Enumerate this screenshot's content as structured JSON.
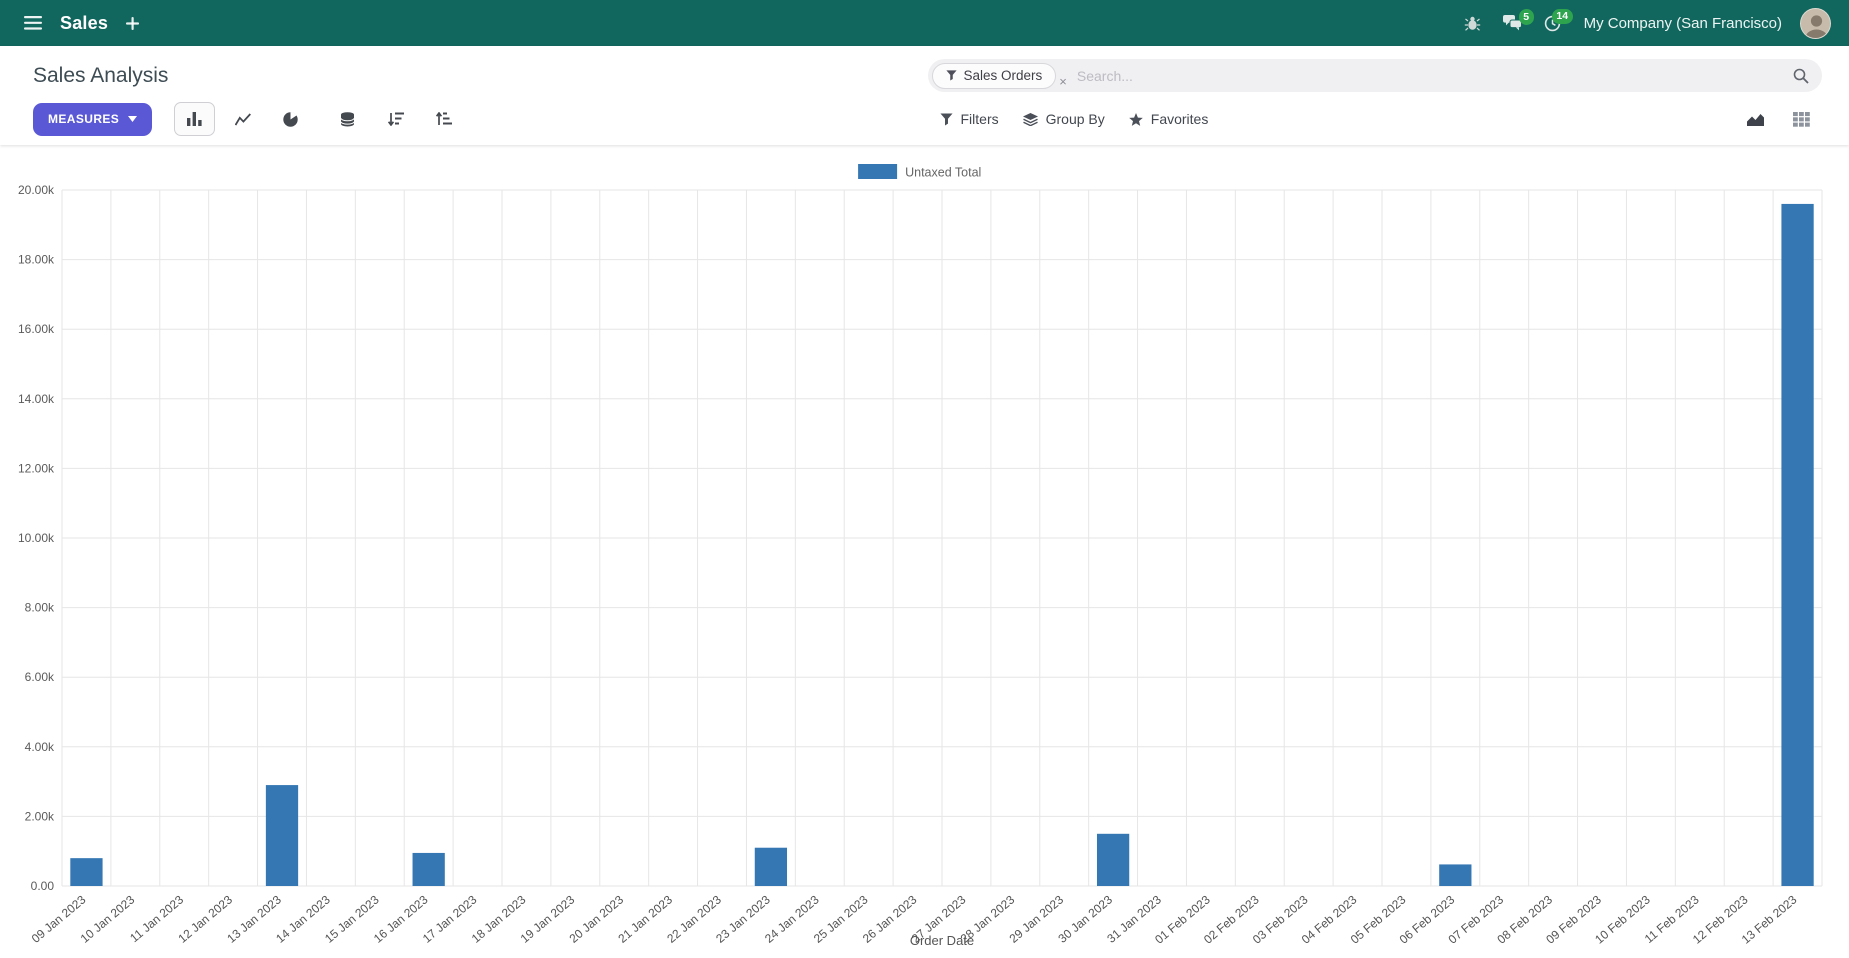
{
  "colors": {
    "nav_bg": "#11675e",
    "primary_button": "#5a58d5",
    "bar": "#3477b3",
    "badge": "#2ea44f"
  },
  "nav": {
    "app_name": "Sales",
    "messages_badge": "5",
    "activities_badge": "14",
    "company": "My Company (San Francisco)"
  },
  "control_panel": {
    "title": "Sales Analysis",
    "measures_label": "MEASURES",
    "filters_label": "Filters",
    "group_by_label": "Group By",
    "favorites_label": "Favorites"
  },
  "search": {
    "facet_label": "Sales Orders",
    "facet_remove": "×",
    "placeholder": "Search..."
  },
  "chart_data": {
    "type": "bar",
    "title": "",
    "xlabel": "Order Date",
    "ylabel": "",
    "ylim": [
      0,
      20000
    ],
    "ytick_labels": [
      "0.00",
      "2.00k",
      "4.00k",
      "6.00k",
      "8.00k",
      "10.00k",
      "12.00k",
      "14.00k",
      "16.00k",
      "18.00k",
      "20.00k"
    ],
    "grid": true,
    "legend_position": "top",
    "categories": [
      "09 Jan 2023",
      "10 Jan 2023",
      "11 Jan 2023",
      "12 Jan 2023",
      "13 Jan 2023",
      "14 Jan 2023",
      "15 Jan 2023",
      "16 Jan 2023",
      "17 Jan 2023",
      "18 Jan 2023",
      "19 Jan 2023",
      "20 Jan 2023",
      "21 Jan 2023",
      "22 Jan 2023",
      "23 Jan 2023",
      "24 Jan 2023",
      "25 Jan 2023",
      "26 Jan 2023",
      "27 Jan 2023",
      "28 Jan 2023",
      "29 Jan 2023",
      "30 Jan 2023",
      "31 Jan 2023",
      "01 Feb 2023",
      "02 Feb 2023",
      "03 Feb 2023",
      "04 Feb 2023",
      "05 Feb 2023",
      "06 Feb 2023",
      "07 Feb 2023",
      "08 Feb 2023",
      "09 Feb 2023",
      "10 Feb 2023",
      "11 Feb 2023",
      "12 Feb 2023",
      "13 Feb 2023"
    ],
    "series": [
      {
        "name": "Untaxed Total",
        "color": "#3477b3",
        "values": [
          800,
          0,
          0,
          0,
          2900,
          0,
          0,
          950,
          0,
          0,
          0,
          0,
          0,
          0,
          1100,
          0,
          0,
          0,
          0,
          0,
          0,
          1500,
          0,
          0,
          0,
          0,
          0,
          0,
          620,
          0,
          0,
          0,
          0,
          0,
          0,
          19600
        ]
      }
    ]
  }
}
